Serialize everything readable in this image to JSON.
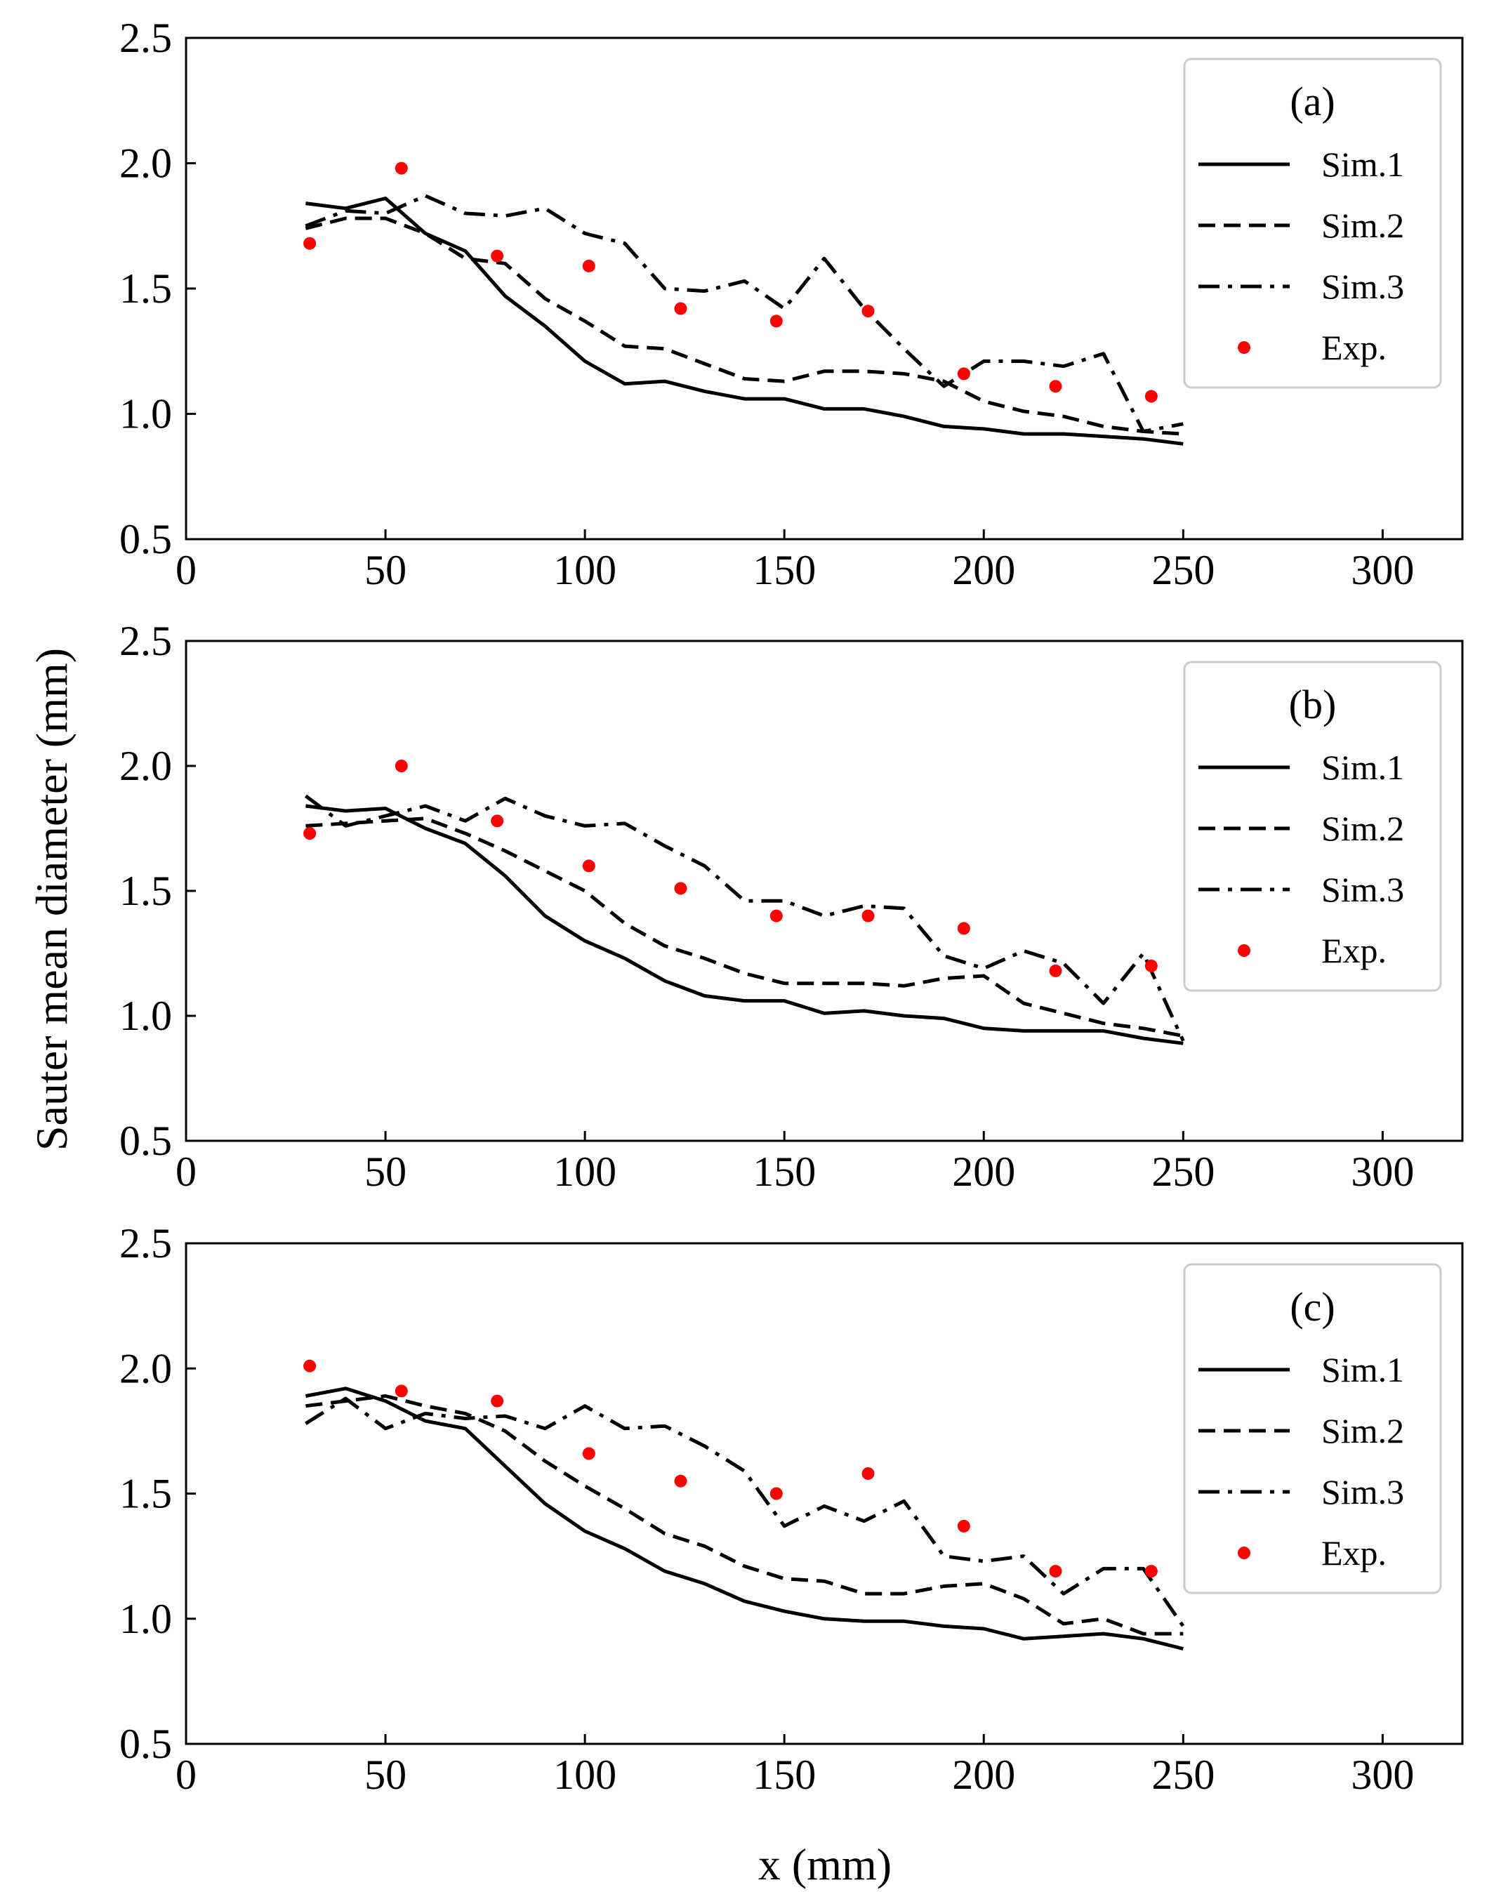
{
  "chart_data": {
    "type": "line",
    "ylabel": "Sauter mean diameter (mm)",
    "xlabel": "x (mm)",
    "xlim": [
      0,
      320
    ],
    "ylim": [
      0.5,
      2.5
    ],
    "xticks": [
      0,
      50,
      100,
      150,
      200,
      250,
      300
    ],
    "yticks": [
      0.5,
      1.0,
      1.5,
      2.0,
      2.5
    ],
    "xtick_labels": [
      "0",
      "50",
      "100",
      "150",
      "200",
      "250",
      "300"
    ],
    "ytick_labels": [
      "0.5",
      "1.0",
      "1.5",
      "2.0",
      "2.5"
    ],
    "legend_entries": [
      "Sim.1",
      "Sim.2",
      "Sim.3",
      "Exp."
    ],
    "legend_position": "top-right",
    "colors": {
      "sim": "#000000",
      "exp": "#ff0000"
    },
    "panels": [
      {
        "label": "(a)",
        "series": [
          {
            "name": "Sim.1",
            "style": "solid",
            "x": [
              30,
              40,
              50,
              60,
              70,
              80,
              90,
              100,
              110,
              120,
              130,
              140,
              150,
              160,
              170,
              180,
              190,
              200,
              210,
              220,
              230,
              240,
              250
            ],
            "y": [
              1.84,
              1.82,
              1.86,
              1.72,
              1.65,
              1.47,
              1.35,
              1.21,
              1.12,
              1.13,
              1.09,
              1.06,
              1.06,
              1.02,
              1.02,
              0.99,
              0.95,
              0.94,
              0.92,
              0.92,
              0.91,
              0.9,
              0.88
            ]
          },
          {
            "name": "Sim.2",
            "style": "dashed",
            "x": [
              30,
              40,
              50,
              60,
              70,
              80,
              90,
              100,
              110,
              120,
              130,
              140,
              150,
              160,
              170,
              180,
              190,
              200,
              210,
              220,
              230,
              240,
              250
            ],
            "y": [
              1.74,
              1.78,
              1.78,
              1.72,
              1.62,
              1.6,
              1.46,
              1.37,
              1.27,
              1.26,
              1.2,
              1.14,
              1.13,
              1.17,
              1.17,
              1.16,
              1.13,
              1.05,
              1.01,
              0.99,
              0.95,
              0.93,
              0.92
            ]
          },
          {
            "name": "Sim.3",
            "style": "dashdot",
            "x": [
              30,
              40,
              50,
              60,
              70,
              80,
              90,
              100,
              110,
              120,
              130,
              140,
              150,
              160,
              170,
              180,
              190,
              200,
              210,
              220,
              230,
              240,
              250
            ],
            "y": [
              1.75,
              1.81,
              1.8,
              1.87,
              1.8,
              1.79,
              1.82,
              1.72,
              1.68,
              1.5,
              1.49,
              1.53,
              1.42,
              1.62,
              1.42,
              1.26,
              1.11,
              1.21,
              1.21,
              1.19,
              1.24,
              0.93,
              0.96
            ]
          },
          {
            "name": "Exp.",
            "style": "markers",
            "x": [
              31,
              54,
              78,
              101,
              124,
              148,
              171,
              195,
              218,
              242
            ],
            "y": [
              1.68,
              1.98,
              1.63,
              1.59,
              1.42,
              1.37,
              1.41,
              1.16,
              1.11,
              1.07
            ]
          }
        ]
      },
      {
        "label": "(b)",
        "series": [
          {
            "name": "Sim.1",
            "style": "solid",
            "x": [
              30,
              40,
              50,
              60,
              70,
              80,
              90,
              100,
              110,
              120,
              130,
              140,
              150,
              160,
              170,
              180,
              190,
              200,
              210,
              220,
              230,
              240,
              250
            ],
            "y": [
              1.84,
              1.82,
              1.83,
              1.75,
              1.69,
              1.56,
              1.4,
              1.3,
              1.23,
              1.14,
              1.08,
              1.06,
              1.06,
              1.01,
              1.02,
              1.0,
              0.99,
              0.95,
              0.94,
              0.94,
              0.94,
              0.91,
              0.89
            ]
          },
          {
            "name": "Sim.2",
            "style": "dashed",
            "x": [
              30,
              40,
              50,
              60,
              70,
              80,
              90,
              100,
              110,
              120,
              130,
              140,
              150,
              160,
              170,
              180,
              190,
              200,
              210,
              220,
              230,
              240,
              250
            ],
            "y": [
              1.76,
              1.77,
              1.78,
              1.79,
              1.73,
              1.66,
              1.58,
              1.5,
              1.37,
              1.28,
              1.23,
              1.17,
              1.13,
              1.13,
              1.13,
              1.12,
              1.15,
              1.16,
              1.05,
              1.01,
              0.97,
              0.95,
              0.92
            ]
          },
          {
            "name": "Sim.3",
            "style": "dashdot",
            "x": [
              30,
              40,
              50,
              60,
              70,
              80,
              90,
              100,
              110,
              120,
              130,
              140,
              150,
              160,
              170,
              180,
              190,
              200,
              210,
              220,
              230,
              240,
              250
            ],
            "y": [
              1.88,
              1.76,
              1.8,
              1.84,
              1.78,
              1.87,
              1.8,
              1.76,
              1.77,
              1.68,
              1.6,
              1.46,
              1.46,
              1.4,
              1.44,
              1.43,
              1.24,
              1.19,
              1.26,
              1.21,
              1.05,
              1.25,
              0.9
            ]
          },
          {
            "name": "Exp.",
            "style": "markers",
            "x": [
              31,
              54,
              78,
              101,
              124,
              148,
              171,
              195,
              218,
              242
            ],
            "y": [
              1.73,
              2.0,
              1.78,
              1.6,
              1.51,
              1.4,
              1.4,
              1.35,
              1.18,
              1.2
            ]
          }
        ]
      },
      {
        "label": "(c)",
        "series": [
          {
            "name": "Sim.1",
            "style": "solid",
            "x": [
              30,
              40,
              50,
              60,
              70,
              80,
              90,
              100,
              110,
              120,
              130,
              140,
              150,
              160,
              170,
              180,
              190,
              200,
              210,
              220,
              230,
              240,
              250
            ],
            "y": [
              1.89,
              1.92,
              1.87,
              1.79,
              1.76,
              1.61,
              1.46,
              1.35,
              1.28,
              1.19,
              1.14,
              1.07,
              1.03,
              1.0,
              0.99,
              0.99,
              0.97,
              0.96,
              0.92,
              0.93,
              0.94,
              0.92,
              0.88
            ]
          },
          {
            "name": "Sim.2",
            "style": "dashed",
            "x": [
              30,
              40,
              50,
              60,
              70,
              80,
              90,
              100,
              110,
              120,
              130,
              140,
              150,
              160,
              170,
              180,
              190,
              200,
              210,
              220,
              230,
              240,
              250
            ],
            "y": [
              1.85,
              1.87,
              1.89,
              1.85,
              1.82,
              1.75,
              1.63,
              1.53,
              1.44,
              1.34,
              1.29,
              1.21,
              1.16,
              1.15,
              1.1,
              1.1,
              1.13,
              1.14,
              1.08,
              0.98,
              1.0,
              0.94,
              0.94
            ]
          },
          {
            "name": "Sim.3",
            "style": "dashdot",
            "x": [
              30,
              40,
              50,
              60,
              70,
              80,
              90,
              100,
              110,
              120,
              130,
              140,
              150,
              160,
              170,
              180,
              190,
              200,
              210,
              220,
              230,
              240,
              250
            ],
            "y": [
              1.78,
              1.88,
              1.76,
              1.82,
              1.8,
              1.81,
              1.76,
              1.85,
              1.76,
              1.77,
              1.69,
              1.59,
              1.37,
              1.45,
              1.39,
              1.47,
              1.25,
              1.23,
              1.25,
              1.1,
              1.2,
              1.2,
              0.97
            ]
          },
          {
            "name": "Exp.",
            "style": "markers",
            "x": [
              31,
              54,
              78,
              101,
              124,
              148,
              171,
              195,
              218,
              242
            ],
            "y": [
              2.01,
              1.91,
              1.87,
              1.66,
              1.55,
              1.5,
              1.58,
              1.37,
              1.19,
              1.19
            ]
          }
        ]
      }
    ]
  }
}
